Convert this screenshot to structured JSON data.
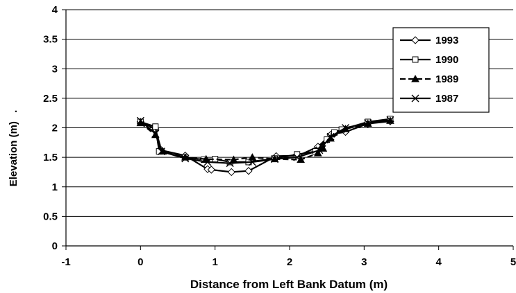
{
  "chart_data": {
    "type": "line",
    "title": "",
    "xlabel": "Distance from Left Bank Datum (m)",
    "ylabel": "Elevation (m)",
    "ylabel_suffix": ".",
    "xlim": [
      -1,
      5
    ],
    "ylim": [
      0,
      4
    ],
    "x_ticks": [
      "-1",
      "0",
      "1",
      "2",
      "3",
      "4",
      "5"
    ],
    "y_ticks": [
      "0",
      "0.5",
      "1",
      "1.5",
      "2",
      "2.5",
      "3",
      "3.5",
      "4"
    ],
    "grid": "horizontal",
    "legend_position": "top-right",
    "series": [
      {
        "name": "1993",
        "marker": "diamond-open",
        "dash": "solid",
        "color": "#000000",
        "x": [
          0.0,
          0.2,
          0.28,
          0.6,
          0.9,
          0.95,
          1.22,
          1.45,
          1.82,
          2.12,
          2.38,
          2.55,
          2.6,
          2.75,
          3.05,
          3.35
        ],
        "y": [
          2.1,
          1.98,
          1.62,
          1.53,
          1.3,
          1.29,
          1.25,
          1.27,
          1.52,
          1.53,
          1.68,
          1.88,
          1.9,
          1.93,
          2.07,
          2.11
        ]
      },
      {
        "name": "1990",
        "marker": "square-open",
        "dash": "solid",
        "color": "#000000",
        "x": [
          0.0,
          0.2,
          0.25,
          0.6,
          0.85,
          1.0,
          1.2,
          1.45,
          1.8,
          2.1,
          2.35,
          2.5,
          2.6,
          2.7,
          3.05,
          3.35
        ],
        "y": [
          2.1,
          2.02,
          1.6,
          1.5,
          1.46,
          1.47,
          1.42,
          1.42,
          1.48,
          1.55,
          1.6,
          1.8,
          1.92,
          1.97,
          2.1,
          2.15
        ]
      },
      {
        "name": "1989",
        "marker": "triangle-filled",
        "dash": "dashed",
        "color": "#000000",
        "x": [
          0.0,
          0.2,
          0.3,
          0.6,
          0.88,
          1.25,
          1.5,
          1.8,
          2.15,
          2.38,
          2.45,
          2.55,
          2.75,
          3.05,
          3.35
        ],
        "y": [
          2.08,
          1.88,
          1.6,
          1.5,
          1.47,
          1.46,
          1.5,
          1.47,
          1.46,
          1.57,
          1.65,
          1.82,
          1.98,
          2.07,
          2.12
        ]
      },
      {
        "name": "1987",
        "marker": "x",
        "dash": "solid",
        "color": "#000000",
        "x": [
          0.0,
          0.2,
          0.28,
          0.6,
          0.9,
          1.2,
          1.5,
          1.8,
          2.1,
          2.4,
          2.55,
          2.75,
          3.05,
          3.35
        ],
        "y": [
          2.12,
          1.9,
          1.6,
          1.48,
          1.42,
          1.4,
          1.42,
          1.47,
          1.5,
          1.62,
          1.85,
          2.0,
          2.08,
          2.13
        ]
      }
    ]
  }
}
